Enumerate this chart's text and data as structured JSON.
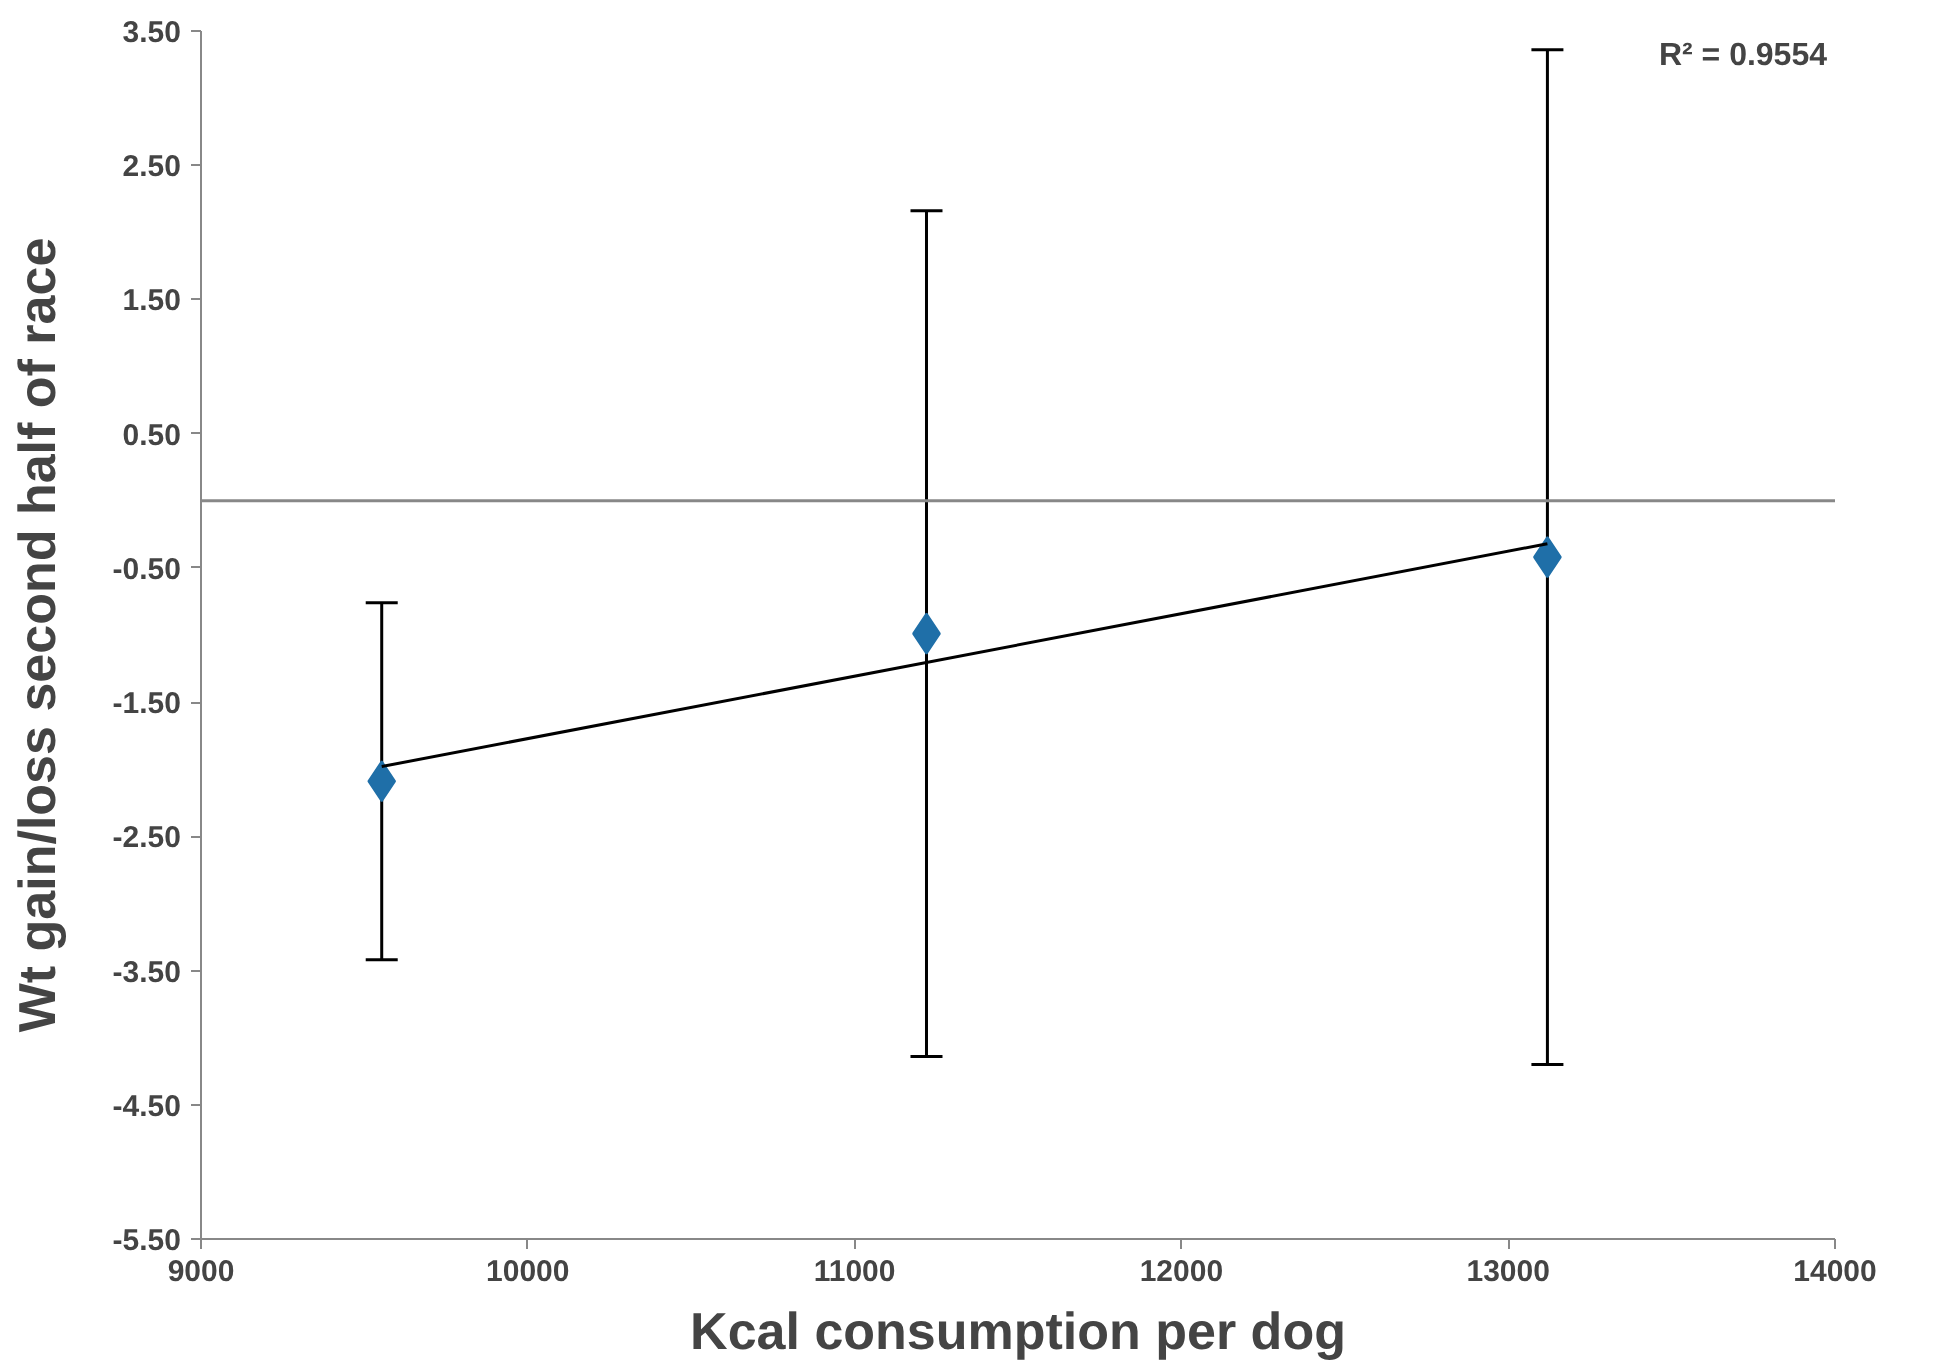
{
  "chart_data": {
    "type": "scatter",
    "xlabel": "Kcal consumption per dog",
    "ylabel": "Wt gain/loss second half of race",
    "annotations": [
      "R² = 0.9554"
    ],
    "xlim": [
      9000,
      14000
    ],
    "xticks": [
      9000,
      10000,
      11000,
      12000,
      13000,
      14000
    ],
    "ylim": [
      -5.5,
      3.5
    ],
    "yticks": [
      {
        "value": 3.5,
        "label": "3.50"
      },
      {
        "value": 2.5,
        "label": "2.50"
      },
      {
        "value": 1.5,
        "label": "1.50"
      },
      {
        "value": 0.5,
        "label": "0.50"
      },
      {
        "value": -0.5,
        "label": "-0.50"
      },
      {
        "value": -1.5,
        "label": "-1.50"
      },
      {
        "value": -2.5,
        "label": "-2.50"
      },
      {
        "value": -3.5,
        "label": "-3.50"
      },
      {
        "value": -4.5,
        "label": "-4.50"
      },
      {
        "value": -5.5,
        "label": "-5.50"
      }
    ],
    "grid": false,
    "ref_lines": [
      {
        "axis": "y",
        "value": 0,
        "color": "#888888"
      }
    ],
    "series": [
      {
        "marker": "diamond",
        "color": "#1f6fa8",
        "x": [
          9553,
          11220,
          13120
        ],
        "values": [
          -2.09,
          -0.99,
          -0.42
        ],
        "errors": [
          1.33,
          3.15,
          3.78
        ]
      },
      {
        "type": "line",
        "marker": "none",
        "line_style": "solid",
        "color": "#000000",
        "x": [
          9553,
          13120
        ],
        "values": [
          -1.98,
          -0.32
        ]
      }
    ]
  }
}
